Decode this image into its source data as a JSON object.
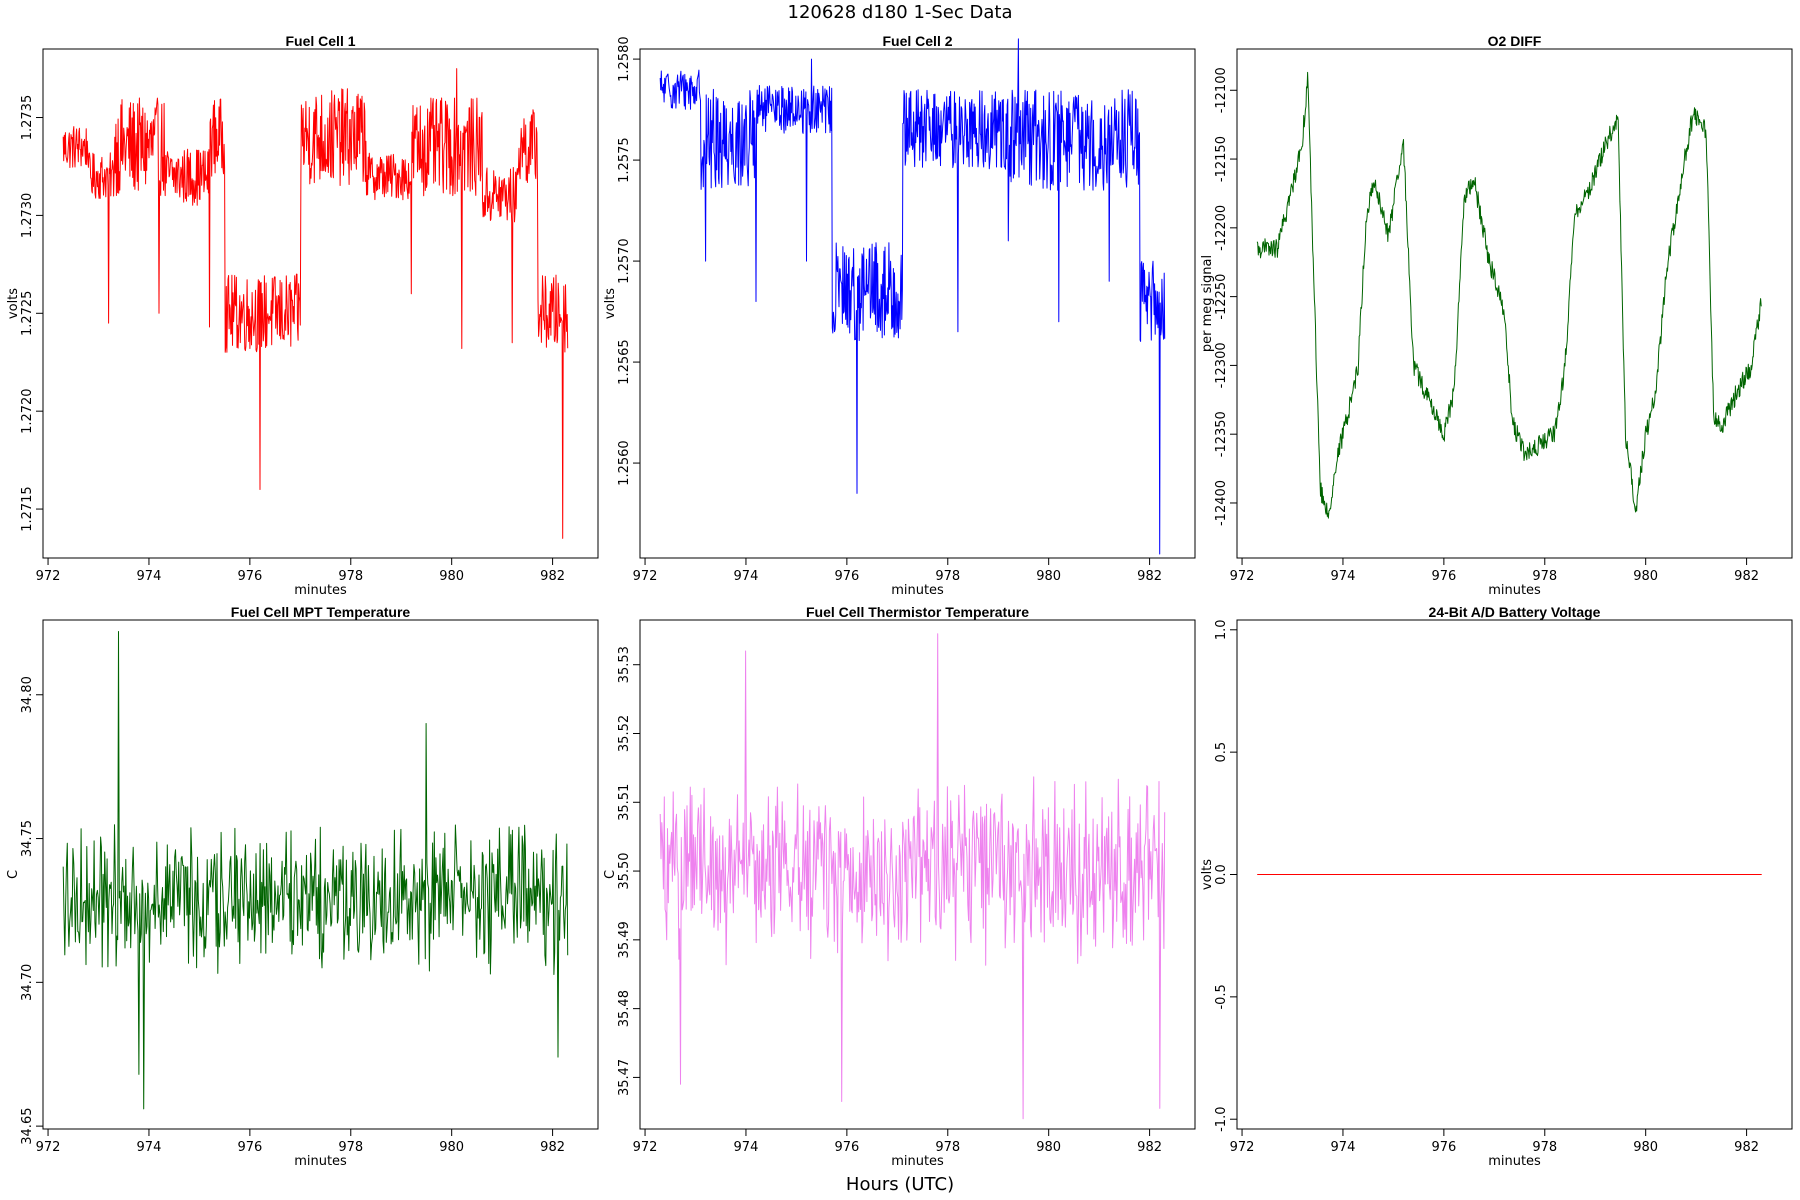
{
  "page": {
    "title": "120628   d180   1-Sec Data",
    "footer": "Hours (UTC)"
  },
  "chart_data": [
    {
      "id": "fc1",
      "type": "line",
      "title": "Fuel Cell 1",
      "xlabel": "minutes",
      "ylabel": "volts",
      "color": "#ff0000",
      "xlim": [
        971.9,
        982.9
      ],
      "ylim": [
        1.27125,
        1.27385
      ],
      "xticks": [
        972,
        974,
        976,
        978,
        980,
        982
      ],
      "yticks": [
        1.2715,
        1.272,
        1.2725,
        1.273,
        1.2735
      ],
      "ytick_labels": [
        "1.2715",
        "1.2720",
        "1.2725",
        "1.2730",
        "1.2735"
      ],
      "x_range": [
        972.3,
        982.3
      ],
      "levels": [
        {
          "from": 972.3,
          "to": 972.8,
          "value": 1.27335,
          "noise": 0.00012
        },
        {
          "from": 972.8,
          "to": 973.3,
          "value": 1.2732,
          "noise": 0.00012
        },
        {
          "from": 973.3,
          "to": 974.3,
          "value": 1.27335,
          "noise": 0.00025
        },
        {
          "from": 974.3,
          "to": 975.2,
          "value": 1.2732,
          "noise": 0.00015
        },
        {
          "from": 975.2,
          "to": 975.5,
          "value": 1.2734,
          "noise": 0.0002
        },
        {
          "from": 975.5,
          "to": 977.0,
          "value": 1.2725,
          "noise": 0.0002
        },
        {
          "from": 977.0,
          "to": 978.3,
          "value": 1.2734,
          "noise": 0.00025
        },
        {
          "from": 978.3,
          "to": 979.2,
          "value": 1.2732,
          "noise": 0.00012
        },
        {
          "from": 979.2,
          "to": 980.6,
          "value": 1.27335,
          "noise": 0.00025
        },
        {
          "from": 980.6,
          "to": 981.3,
          "value": 1.2731,
          "noise": 0.00015
        },
        {
          "from": 981.3,
          "to": 981.7,
          "value": 1.27335,
          "noise": 0.0002
        },
        {
          "from": 981.7,
          "to": 982.3,
          "value": 1.2725,
          "noise": 0.0002
        }
      ],
      "spikes": [
        {
          "x": 973.2,
          "y": 1.27245
        },
        {
          "x": 974.2,
          "y": 1.2725
        },
        {
          "x": 975.2,
          "y": 1.27243
        },
        {
          "x": 976.2,
          "y": 1.2716
        },
        {
          "x": 979.2,
          "y": 1.2726
        },
        {
          "x": 980.2,
          "y": 1.27232
        },
        {
          "x": 981.2,
          "y": 1.27235
        },
        {
          "x": 982.2,
          "y": 1.27135
        },
        {
          "x": 980.1,
          "y": 1.27375
        }
      ]
    },
    {
      "id": "fc2",
      "type": "line",
      "title": "Fuel Cell 2",
      "xlabel": "minutes",
      "ylabel": "volts",
      "color": "#0000ff",
      "xlim": [
        971.9,
        982.9
      ],
      "ylim": [
        1.25553,
        1.25805
      ],
      "xticks": [
        972,
        974,
        976,
        978,
        980,
        982
      ],
      "yticks": [
        1.256,
        1.2565,
        1.257,
        1.2575,
        1.258
      ],
      "ytick_labels": [
        "1.2560",
        "1.2565",
        "1.2570",
        "1.2575",
        "1.2580"
      ],
      "x_range": [
        972.3,
        982.3
      ],
      "levels": [
        {
          "from": 972.3,
          "to": 973.1,
          "value": 1.25785,
          "noise": 0.0001
        },
        {
          "from": 973.1,
          "to": 974.2,
          "value": 1.2576,
          "noise": 0.00025
        },
        {
          "from": 974.2,
          "to": 975.7,
          "value": 1.25775,
          "noise": 0.00012
        },
        {
          "from": 975.7,
          "to": 977.1,
          "value": 1.25685,
          "noise": 0.00025
        },
        {
          "from": 977.1,
          "to": 979.2,
          "value": 1.25765,
          "noise": 0.0002
        },
        {
          "from": 979.2,
          "to": 981.8,
          "value": 1.2576,
          "noise": 0.00025
        },
        {
          "from": 981.8,
          "to": 982.3,
          "value": 1.2568,
          "noise": 0.0002
        }
      ],
      "spikes": [
        {
          "x": 973.2,
          "y": 1.257
        },
        {
          "x": 974.2,
          "y": 1.2568
        },
        {
          "x": 975.2,
          "y": 1.257
        },
        {
          "x": 976.2,
          "y": 1.25585
        },
        {
          "x": 978.2,
          "y": 1.25665
        },
        {
          "x": 979.2,
          "y": 1.2571
        },
        {
          "x": 980.2,
          "y": 1.2567
        },
        {
          "x": 981.2,
          "y": 1.2569
        },
        {
          "x": 982.2,
          "y": 1.25555
        },
        {
          "x": 975.3,
          "y": 1.258
        },
        {
          "x": 979.4,
          "y": 1.2581
        }
      ]
    },
    {
      "id": "o2",
      "type": "line",
      "title": "O2 DIFF",
      "xlabel": "minutes",
      "ylabel": "per meg signal",
      "color": "#006400",
      "xlim": [
        971.9,
        982.9
      ],
      "ylim": [
        -12440,
        -12070
      ],
      "xticks": [
        972,
        974,
        976,
        978,
        980,
        982
      ],
      "yticks": [
        -12400,
        -12350,
        -12300,
        -12250,
        -12200,
        -12150,
        -12100
      ],
      "ytick_labels": [
        "-12400",
        "-12350",
        "-12300",
        "-12250",
        "-12200",
        "-12150",
        "-12100"
      ],
      "x_range": [
        972.3,
        982.3
      ],
      "knots": [
        [
          972.3,
          -12215
        ],
        [
          972.7,
          -12215
        ],
        [
          973.0,
          -12170
        ],
        [
          973.2,
          -12135
        ],
        [
          973.3,
          -12090
        ],
        [
          973.55,
          -12390
        ],
        [
          973.7,
          -12410
        ],
        [
          973.9,
          -12365
        ],
        [
          974.1,
          -12335
        ],
        [
          974.3,
          -12300
        ],
        [
          974.45,
          -12200
        ],
        [
          974.6,
          -12165
        ],
        [
          974.9,
          -12205
        ],
        [
          975.2,
          -12140
        ],
        [
          975.4,
          -12300
        ],
        [
          975.7,
          -12325
        ],
        [
          976.0,
          -12350
        ],
        [
          976.2,
          -12320
        ],
        [
          976.4,
          -12180
        ],
        [
          976.6,
          -12165
        ],
        [
          976.9,
          -12225
        ],
        [
          977.2,
          -12260
        ],
        [
          977.35,
          -12340
        ],
        [
          977.6,
          -12365
        ],
        [
          978.2,
          -12350
        ],
        [
          978.4,
          -12300
        ],
        [
          978.6,
          -12190
        ],
        [
          978.9,
          -12170
        ],
        [
          979.2,
          -12140
        ],
        [
          979.45,
          -12120
        ],
        [
          979.6,
          -12350
        ],
        [
          979.8,
          -12405
        ],
        [
          980.0,
          -12350
        ],
        [
          980.2,
          -12320
        ],
        [
          980.4,
          -12235
        ],
        [
          980.7,
          -12165
        ],
        [
          980.95,
          -12115
        ],
        [
          981.2,
          -12130
        ],
        [
          981.35,
          -12340
        ],
        [
          981.5,
          -12345
        ],
        [
          981.8,
          -12320
        ],
        [
          982.1,
          -12300
        ],
        [
          982.3,
          -12250
        ]
      ]
    },
    {
      "id": "mpt",
      "type": "line",
      "title": "Fuel Cell MPT Temperature",
      "xlabel": "minutes",
      "ylabel": "C",
      "color": "#006400",
      "xlim": [
        971.9,
        982.9
      ],
      "ylim": [
        34.649,
        34.826
      ],
      "xticks": [
        972,
        974,
        976,
        978,
        980,
        982
      ],
      "yticks": [
        34.65,
        34.7,
        34.75,
        34.8
      ],
      "ytick_labels": [
        "34.65",
        "34.70",
        "34.75",
        "34.80"
      ],
      "x_range": [
        972.3,
        982.3
      ],
      "base": 34.73,
      "noise": 0.028,
      "extremes": [
        {
          "x": 973.4,
          "y": 34.822
        },
        {
          "x": 973.9,
          "y": 34.656
        },
        {
          "x": 973.8,
          "y": 34.668
        },
        {
          "x": 979.5,
          "y": 34.79
        },
        {
          "x": 982.1,
          "y": 34.674
        }
      ]
    },
    {
      "id": "therm",
      "type": "line",
      "title": "Fuel Cell Thermistor Temperature",
      "xlabel": "minutes",
      "ylabel": "C",
      "color": "#ee82ee",
      "xlim": [
        971.9,
        982.9
      ],
      "ylim": [
        35.4625,
        35.5365
      ],
      "xticks": [
        972,
        974,
        976,
        978,
        980,
        982
      ],
      "yticks": [
        35.47,
        35.48,
        35.49,
        35.5,
        35.51,
        35.52,
        35.53
      ],
      "ytick_labels": [
        "35.47",
        "35.48",
        "35.49",
        "35.50",
        "35.51",
        "35.52",
        "35.53"
      ],
      "x_range": [
        972.3,
        982.3
      ],
      "base": 35.5,
      "noise": 0.014,
      "extremes": [
        {
          "x": 977.8,
          "y": 35.5345
        },
        {
          "x": 979.5,
          "y": 35.464
        },
        {
          "x": 975.9,
          "y": 35.4665
        },
        {
          "x": 974.0,
          "y": 35.532
        },
        {
          "x": 982.2,
          "y": 35.4655
        },
        {
          "x": 972.7,
          "y": 35.469
        }
      ]
    },
    {
      "id": "batt",
      "type": "line",
      "title": "24-Bit A/D Battery Voltage",
      "xlabel": "minutes",
      "ylabel": "volts",
      "color": "#ff0000",
      "xlim": [
        971.9,
        982.9
      ],
      "ylim": [
        -1.04,
        1.04
      ],
      "xticks": [
        972,
        974,
        976,
        978,
        980,
        982
      ],
      "yticks": [
        -1.0,
        -0.5,
        0.0,
        0.5,
        1.0
      ],
      "ytick_labels": [
        "-1.0",
        "-0.5",
        "0.0",
        "0.5",
        "1.0"
      ],
      "x_range": [
        972.3,
        982.3
      ],
      "constant": 0.0
    }
  ]
}
